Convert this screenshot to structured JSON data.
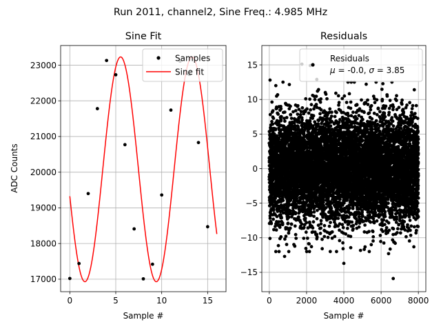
{
  "figure": {
    "suptitle": "Run 2011, channel2, Sine Freq.: 4.985 MHz"
  },
  "chart_data": [
    {
      "type": "line",
      "title": "Sine Fit",
      "xlabel": "Sample #",
      "ylabel": "ADC Counts",
      "xlim": [
        -1,
        17
      ],
      "ylim": [
        16650,
        23550
      ],
      "xticks": [
        0,
        5,
        10,
        15
      ],
      "yticks": [
        17000,
        18000,
        19000,
        20000,
        21000,
        22000,
        23000
      ],
      "grid": true,
      "legend": {
        "placement": "top-right",
        "entries": [
          "Samples",
          "Sine fit"
        ]
      },
      "colors": {
        "samples": "#000000",
        "fit": "#ff0000"
      },
      "series": [
        {
          "name": "Samples",
          "style": "markers",
          "x": [
            0,
            1,
            2,
            3,
            4,
            5,
            6,
            7,
            8,
            9,
            10,
            11,
            12,
            13,
            14,
            15
          ],
          "y": [
            17020,
            17440,
            19400,
            21780,
            23130,
            22730,
            20770,
            18410,
            17010,
            17420,
            19360,
            21740,
            23110,
            22740,
            20830,
            18470
          ]
        },
        {
          "name": "Sine fit",
          "style": "line",
          "function": "sine",
          "x_range": [
            0,
            16
          ],
          "offset": 20080,
          "amplitude": 3150,
          "cycles_per_sample": 0.1287,
          "phase": -2.9
        }
      ]
    },
    {
      "type": "scatter",
      "title": "Residuals",
      "xlabel": "Sample #",
      "ylabel": "",
      "xlim": [
        -400,
        8400
      ],
      "ylim": [
        -17.8,
        17.8
      ],
      "xticks": [
        0,
        2000,
        4000,
        6000,
        8000
      ],
      "yticks": [
        -15,
        -10,
        -5,
        0,
        5,
        10,
        15
      ],
      "grid": true,
      "color": "#000000",
      "legend": {
        "placement": "top-right",
        "entries": [
          "Residuals"
        ],
        "note": "μ = -0.0, σ = 3.85"
      },
      "n_points": 8000,
      "mean": -0.0,
      "sigma": 3.85,
      "series": [
        {
          "name": "Residuals",
          "distribution": "normal",
          "outliers": [
            {
              "x": 1750,
              "y": 15.1
            },
            {
              "x": 2550,
              "y": 12.9
            },
            {
              "x": 4000,
              "y": -13.7
            },
            {
              "x": 6650,
              "y": -15.9
            },
            {
              "x": 820,
              "y": -12.7
            },
            {
              "x": 40,
              "y": 12.8
            },
            {
              "x": 7780,
              "y": 11.4
            },
            {
              "x": 6400,
              "y": -12.3
            },
            {
              "x": 350,
              "y": 12.0
            },
            {
              "x": 2200,
              "y": 14.9
            },
            {
              "x": 5200,
              "y": 12.2
            }
          ]
        }
      ]
    }
  ]
}
